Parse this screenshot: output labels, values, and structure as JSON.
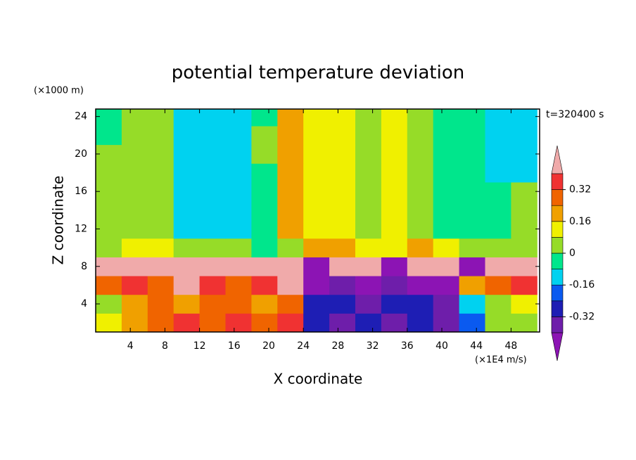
{
  "chart_data": {
    "type": "contour",
    "title": "potential temperature deviation",
    "annotation": "t=320400 s",
    "x_label": "X coordinate",
    "y_label": "Z coordinate",
    "x_unit": "(×1E4 m/s)",
    "y_unit": "(×1000 m)",
    "xlim": [
      0,
      51.3
    ],
    "ylim": [
      1,
      24.8
    ],
    "xticks": [
      4,
      8,
      12,
      16,
      20,
      24,
      28,
      32,
      36,
      40,
      44,
      48
    ],
    "yticks": [
      4,
      8,
      12,
      16,
      20,
      24
    ],
    "x": [
      1.5,
      4.5,
      7.5,
      10.5,
      13.5,
      16.5,
      19.5,
      22.5,
      25.5,
      28.5,
      31.5,
      34.5,
      37.5,
      40.5,
      43.5,
      46.5,
      49.5
    ],
    "y": [
      2,
      4,
      6,
      8,
      10,
      12,
      14,
      16,
      18,
      20,
      22,
      24
    ],
    "values": [
      [
        0.1,
        0.2,
        0.28,
        0.36,
        0.3,
        0.36,
        0.28,
        0.36,
        -0.3,
        -0.36,
        -0.3,
        -0.36,
        -0.28,
        -0.36,
        -0.2,
        0,
        0.04
      ],
      [
        0.04,
        0.2,
        0.28,
        0.2,
        0.3,
        0.28,
        0.2,
        0.28,
        -0.3,
        -0.28,
        -0.36,
        -0.28,
        -0.3,
        -0.36,
        -0.12,
        0.04,
        0.12
      ],
      [
        0.28,
        0.36,
        0.28,
        0.44,
        0.36,
        0.28,
        0.36,
        0.44,
        -0.44,
        -0.36,
        -0.44,
        -0.36,
        -0.44,
        -0.44,
        0.2,
        0.28,
        0.36
      ],
      [
        0.44,
        0.44,
        0.44,
        0.44,
        0.44,
        0.44,
        0.44,
        0.44,
        -0.44,
        0.44,
        0.44,
        -0.44,
        0.44,
        0.44,
        -0.44,
        0.44,
        0.44
      ],
      [
        0.04,
        0.12,
        0.12,
        0.04,
        0.04,
        0.04,
        -0.04,
        0.04,
        0.2,
        0.2,
        0.12,
        0.12,
        0.2,
        0.12,
        0.04,
        0.04,
        0.04
      ],
      [
        0.04,
        0.04,
        0.04,
        -0.12,
        -0.12,
        -0.12,
        -0.04,
        0.2,
        0.12,
        0.12,
        0.04,
        0.12,
        0.04,
        -0.04,
        -0.04,
        -0.04,
        0.04
      ],
      [
        0.04,
        0.04,
        0.04,
        -0.12,
        -0.12,
        -0.12,
        -0.04,
        0.2,
        0.12,
        0.12,
        0.04,
        0.12,
        0.04,
        -0.04,
        -0.04,
        -0.04,
        0.04
      ],
      [
        0.04,
        0.04,
        0.04,
        -0.12,
        -0.12,
        -0.12,
        -0.04,
        0.2,
        0.12,
        0.12,
        0.04,
        0.12,
        0.04,
        -0.04,
        -0.04,
        -0.04,
        0.04
      ],
      [
        0.04,
        0.04,
        0.04,
        -0.12,
        -0.12,
        -0.12,
        -0.04,
        0.2,
        0.12,
        0.12,
        0.04,
        0.12,
        0.04,
        -0.04,
        -0.04,
        -0.12,
        -0.12
      ],
      [
        0.04,
        0.04,
        0.04,
        -0.12,
        -0.12,
        -0.12,
        0.04,
        0.2,
        0.12,
        0.12,
        0.04,
        0.12,
        0.04,
        -0.04,
        -0.04,
        -0.12,
        -0.12
      ],
      [
        -0.04,
        0.04,
        0.04,
        -0.12,
        -0.12,
        -0.12,
        0.04,
        0.2,
        0.12,
        0.12,
        0.04,
        0.12,
        0.04,
        -0.04,
        -0.04,
        -0.12,
        -0.12
      ],
      [
        -0.04,
        0.04,
        0.04,
        -0.12,
        -0.12,
        -0.12,
        -0.04,
        0.2,
        0.12,
        0.12,
        0.04,
        0.12,
        0.04,
        -0.04,
        -0.04,
        -0.12,
        -0.12
      ]
    ],
    "levels": [
      -0.4,
      -0.32,
      -0.24,
      -0.16,
      -0.08,
      0,
      0.08,
      0.16,
      0.24,
      0.32,
      0.4
    ],
    "colors": [
      "#8c14b4",
      "#6e1eaa",
      "#1e1eb4",
      "#0a5af0",
      "#00d2f0",
      "#00e68c",
      "#96dc28",
      "#f0f000",
      "#f0a000",
      "#f06400",
      "#f03232",
      "#f0aaaa"
    ],
    "colorbar_ticks": [
      -0.32,
      -0.16,
      0,
      0.16,
      0.32
    ]
  }
}
